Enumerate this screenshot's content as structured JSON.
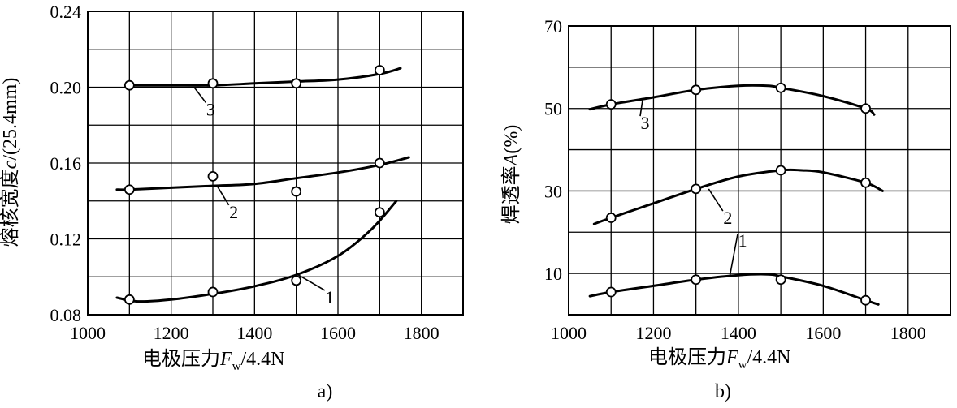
{
  "chart_data": [
    {
      "id": "a",
      "type": "line",
      "panel_label": "a)",
      "xlabel_main": "电极压力",
      "xlabel_var": "F",
      "xlabel_sub": "w",
      "xlabel_unit": "/4.4N",
      "ylabel_main": "熔核宽度",
      "ylabel_var": "c",
      "ylabel_unit": "/(25.4mm)",
      "xlim": [
        1000,
        1900
      ],
      "ylim": [
        0.08,
        0.24
      ],
      "x_ticks": [
        1000,
        1200,
        1400,
        1600,
        1800
      ],
      "x_tick_labels": [
        "1000",
        "1200",
        "1400",
        "1600",
        "1800"
      ],
      "y_ticks": [
        0.08,
        0.12,
        0.16,
        0.2,
        0.24
      ],
      "y_tick_labels": [
        "0.08",
        "0.12",
        "0.16",
        "0.20",
        "0.24"
      ],
      "grid_x": [
        1000,
        1100,
        1200,
        1300,
        1400,
        1500,
        1600,
        1700,
        1800,
        1900
      ],
      "grid_y": [
        0.08,
        0.1,
        0.12,
        0.14,
        0.16,
        0.18,
        0.2,
        0.22,
        0.24
      ],
      "grid": true,
      "series": [
        {
          "name": "1",
          "points": [
            [
              1100,
              0.088
            ],
            [
              1300,
              0.092
            ],
            [
              1500,
              0.098
            ],
            [
              1700,
              0.134
            ]
          ],
          "curve": [
            [
              1070,
              0.089
            ],
            [
              1120,
              0.087
            ],
            [
              1200,
              0.088
            ],
            [
              1300,
              0.091
            ],
            [
              1400,
              0.095
            ],
            [
              1500,
              0.101
            ],
            [
              1600,
              0.111
            ],
            [
              1680,
              0.125
            ],
            [
              1740,
              0.14
            ]
          ],
          "label_at": [
            1580,
            0.086
          ],
          "leader_to": [
            1505,
            0.101
          ]
        },
        {
          "name": "2",
          "points": [
            [
              1100,
              0.146
            ],
            [
              1300,
              0.153
            ],
            [
              1500,
              0.145
            ],
            [
              1700,
              0.16
            ]
          ],
          "curve": [
            [
              1070,
              0.146
            ],
            [
              1100,
              0.146
            ],
            [
              1200,
              0.147
            ],
            [
              1300,
              0.148
            ],
            [
              1400,
              0.149
            ],
            [
              1500,
              0.152
            ],
            [
              1600,
              0.155
            ],
            [
              1700,
              0.159
            ],
            [
              1770,
              0.163
            ]
          ],
          "label_at": [
            1350,
            0.131
          ],
          "leader_to": [
            1310,
            0.148
          ]
        },
        {
          "name": "3",
          "points": [
            [
              1100,
              0.201
            ],
            [
              1300,
              0.202
            ],
            [
              1500,
              0.202
            ],
            [
              1700,
              0.209
            ]
          ],
          "curve": [
            [
              1100,
              0.201
            ],
            [
              1200,
              0.201
            ],
            [
              1300,
              0.201
            ],
            [
              1400,
              0.202
            ],
            [
              1500,
              0.203
            ],
            [
              1600,
              0.204
            ],
            [
              1700,
              0.207
            ],
            [
              1750,
              0.21
            ]
          ],
          "label_at": [
            1295,
            0.185
          ],
          "leader_to": [
            1255,
            0.2
          ]
        }
      ]
    },
    {
      "id": "b",
      "type": "line",
      "panel_label": "b)",
      "xlabel_main": "电极压力",
      "xlabel_var": "F",
      "xlabel_sub": "w",
      "xlabel_unit": "/4.4N",
      "ylabel_main": "焊透率",
      "ylabel_var": "A",
      "ylabel_unit": "(%)",
      "xlim": [
        1000,
        1900
      ],
      "ylim": [
        0,
        70
      ],
      "x_ticks": [
        1000,
        1200,
        1400,
        1600,
        1800
      ],
      "x_tick_labels": [
        "1000",
        "1200",
        "1400",
        "1600",
        "1800"
      ],
      "y_ticks": [
        10,
        30,
        50,
        70
      ],
      "y_tick_labels": [
        "10",
        "30",
        "50",
        "70"
      ],
      "grid_x": [
        1000,
        1100,
        1200,
        1300,
        1400,
        1500,
        1600,
        1700,
        1800,
        1900
      ],
      "grid_y": [
        0,
        10,
        20,
        30,
        40,
        50,
        60,
        70
      ],
      "grid": true,
      "series": [
        {
          "name": "1",
          "points": [
            [
              1100,
              5.5
            ],
            [
              1300,
              8.5
            ],
            [
              1500,
              8.5
            ],
            [
              1700,
              3.5
            ]
          ],
          "curve": [
            [
              1050,
              4.5
            ],
            [
              1100,
              5.5
            ],
            [
              1200,
              7.0
            ],
            [
              1300,
              8.5
            ],
            [
              1400,
              9.6
            ],
            [
              1470,
              9.8
            ],
            [
              1500,
              9.3
            ],
            [
              1600,
              7.0
            ],
            [
              1700,
              3.5
            ],
            [
              1730,
              2.5
            ]
          ],
          "label_at": [
            1410,
            16.5
          ],
          "leader_to": [
            1380,
            9.5
          ]
        },
        {
          "name": "2",
          "points": [
            [
              1100,
              23.5
            ],
            [
              1300,
              30.5
            ],
            [
              1500,
              35.0
            ],
            [
              1700,
              32.0
            ]
          ],
          "curve": [
            [
              1060,
              22.0
            ],
            [
              1100,
              23.5
            ],
            [
              1200,
              27.0
            ],
            [
              1300,
              30.5
            ],
            [
              1400,
              33.5
            ],
            [
              1500,
              35.0
            ],
            [
              1550,
              35.0
            ],
            [
              1600,
              34.5
            ],
            [
              1700,
              32.0
            ],
            [
              1740,
              30.0
            ]
          ],
          "label_at": [
            1375,
            22.0
          ],
          "leader_to": [
            1330,
            30.5
          ]
        },
        {
          "name": "3",
          "points": [
            [
              1100,
              51.0
            ],
            [
              1300,
              54.5
            ],
            [
              1500,
              55.0
            ],
            [
              1700,
              50.0
            ]
          ],
          "curve": [
            [
              1050,
              49.8
            ],
            [
              1100,
              51.0
            ],
            [
              1200,
              52.7
            ],
            [
              1300,
              54.5
            ],
            [
              1400,
              55.5
            ],
            [
              1470,
              55.5
            ],
            [
              1500,
              55.0
            ],
            [
              1600,
              53.0
            ],
            [
              1700,
              50.0
            ],
            [
              1720,
              48.5
            ]
          ],
          "label_at": [
            1180,
            45.0
          ],
          "leader_to": [
            1175,
            52.5
          ]
        }
      ]
    }
  ]
}
